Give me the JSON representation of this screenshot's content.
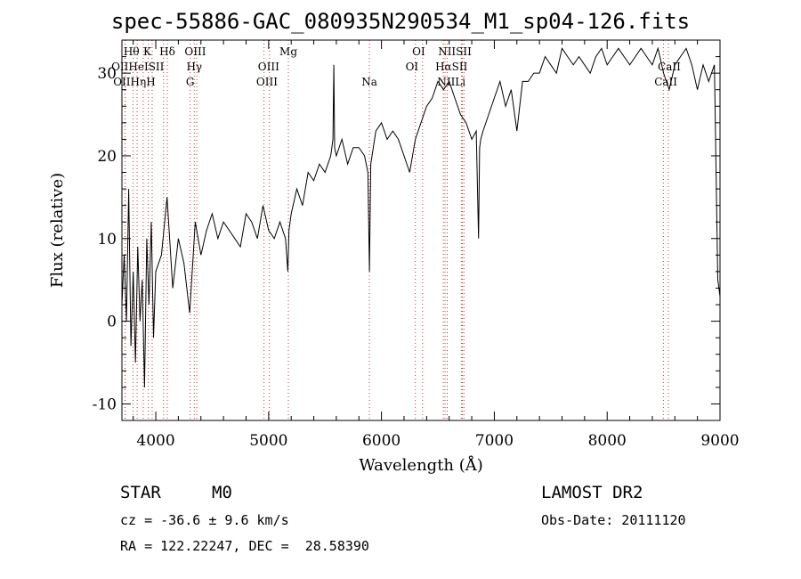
{
  "chart_data": {
    "type": "line",
    "title": "spec-55886-GAC_080935N290534_M1_sp04-126.fits",
    "xlabel": "Wavelength (Å)",
    "ylabel": "Flux (relative)",
    "xlim": [
      3700,
      9000
    ],
    "ylim": [
      -12,
      34
    ],
    "x_ticks": [
      4000,
      5000,
      6000,
      7000,
      8000,
      9000
    ],
    "y_ticks": [
      -10,
      0,
      10,
      20,
      30
    ],
    "grid": false,
    "line_color": "#000000",
    "marker_color": "#cc3333",
    "series": [
      {
        "x": [
          3700,
          3720,
          3740,
          3760,
          3780,
          3800,
          3820,
          3840,
          3860,
          3880,
          3900,
          3920,
          3940,
          3960,
          3980,
          4000,
          4050,
          4100,
          4150,
          4200,
          4250,
          4300,
          4350,
          4400,
          4450,
          4500,
          4550,
          4600,
          4650,
          4700,
          4750,
          4800,
          4850,
          4900,
          4950,
          5000,
          5050,
          5100,
          5150,
          5170,
          5180,
          5200,
          5250,
          5300,
          5350,
          5400,
          5450,
          5500,
          5550,
          5570,
          5578,
          5585,
          5600,
          5650,
          5700,
          5750,
          5800,
          5850,
          5880,
          5893,
          5905,
          5950,
          6000,
          6050,
          6100,
          6150,
          6200,
          6250,
          6300,
          6350,
          6400,
          6450,
          6500,
          6550,
          6600,
          6650,
          6700,
          6750,
          6800,
          6840,
          6860,
          6870,
          6880,
          6900,
          6950,
          7000,
          7050,
          7100,
          7150,
          7200,
          7250,
          7300,
          7350,
          7400,
          7450,
          7500,
          7550,
          7600,
          7650,
          7700,
          7750,
          7800,
          7850,
          7900,
          7950,
          8000,
          8050,
          8100,
          8150,
          8200,
          8250,
          8300,
          8350,
          8400,
          8450,
          8500,
          8550,
          8600,
          8650,
          8700,
          8750,
          8800,
          8850,
          8900,
          8950,
          8980,
          9000
        ],
        "y": [
          2,
          8,
          0,
          16,
          -3,
          6,
          -5,
          9,
          0,
          5,
          -8,
          10,
          2,
          12,
          -2,
          6,
          8,
          15,
          4,
          10,
          7,
          1,
          12,
          8,
          11,
          13,
          10,
          12,
          11,
          10,
          9,
          13,
          12,
          10,
          14,
          11,
          10,
          12,
          10,
          6,
          11,
          13,
          16,
          14,
          18,
          17,
          19,
          18,
          20,
          22,
          31,
          21,
          20,
          22,
          19,
          21,
          21,
          20,
          18,
          6,
          19,
          23,
          24,
          22,
          23,
          22,
          20,
          18,
          22,
          24,
          26,
          27,
          29,
          28,
          29,
          27,
          25,
          24,
          22,
          23,
          10,
          21,
          22,
          23,
          25,
          27,
          29,
          26,
          28,
          23,
          29,
          29,
          30,
          30,
          32,
          31,
          30,
          33,
          32,
          31,
          32,
          31,
          30,
          32,
          33,
          31,
          32,
          33,
          32,
          31,
          32,
          33,
          32,
          31,
          33,
          30,
          28,
          31,
          32,
          33,
          31,
          28,
          31,
          29,
          31,
          5,
          3
        ]
      }
    ],
    "lines": [
      {
        "name": "Hθ",
        "x": 3798
      },
      {
        "name": "OII",
        "x": 3727
      },
      {
        "name": "OII",
        "x": 3729
      },
      {
        "name": "Hη",
        "x": 3835
      },
      {
        "name": "K",
        "x": 3934
      },
      {
        "name": "H",
        "x": 3968
      },
      {
        "name": "HeI",
        "x": 3889
      },
      {
        "name": "SII",
        "x": 4069
      },
      {
        "name": "Hδ",
        "x": 4102
      },
      {
        "name": "OIII",
        "x": 4363
      },
      {
        "name": "Hγ",
        "x": 4341
      },
      {
        "name": "G",
        "x": 4305
      },
      {
        "name": "OIII",
        "x": 4959
      },
      {
        "name": "OIII",
        "x": 5007
      },
      {
        "name": "Mg",
        "x": 5175
      },
      {
        "name": "Na",
        "x": 5893
      },
      {
        "name": "OI",
        "x": 6300
      },
      {
        "name": "OI",
        "x": 6364
      },
      {
        "name": "NII",
        "x": 6548
      },
      {
        "name": "Hα",
        "x": 6563
      },
      {
        "name": "NII",
        "x": 6583
      },
      {
        "name": "SII",
        "x": 6717
      },
      {
        "name": "SII",
        "x": 6731
      },
      {
        "name": "Li",
        "x": 6708
      },
      {
        "name": "CaII",
        "x": 8498
      },
      {
        "name": "CaII",
        "x": 8542
      }
    ],
    "line_labels": [
      {
        "text": "Hθ",
        "x": 3785,
        "row": 0
      },
      {
        "text": "K",
        "x": 3925,
        "row": 0
      },
      {
        "text": "Hδ",
        "x": 4102,
        "row": 0
      },
      {
        "text": "OIII",
        "x": 4350,
        "row": 0
      },
      {
        "text": "Mg",
        "x": 5175,
        "row": 0
      },
      {
        "text": "OI",
        "x": 6330,
        "row": 0
      },
      {
        "text": "NIISII",
        "x": 6650,
        "row": 0
      },
      {
        "text": "OIIHeISII",
        "x": 3840,
        "row": 1
      },
      {
        "text": "Hγ",
        "x": 4341,
        "row": 1
      },
      {
        "text": "OIII",
        "x": 5000,
        "row": 1
      },
      {
        "text": "OI",
        "x": 6270,
        "row": 1
      },
      {
        "text": "HαSII",
        "x": 6620,
        "row": 1
      },
      {
        "text": "CaII",
        "x": 8550,
        "row": 1
      },
      {
        "text": "OIIHηH",
        "x": 3810,
        "row": 2
      },
      {
        "text": "G",
        "x": 4305,
        "row": 2
      },
      {
        "text": "OIII",
        "x": 4985,
        "row": 2
      },
      {
        "text": "Na",
        "x": 5893,
        "row": 2
      },
      {
        "text": "NIILi",
        "x": 6620,
        "row": 2
      },
      {
        "text": "CaII",
        "x": 8520,
        "row": 2
      }
    ]
  },
  "info": {
    "class_label": "STAR",
    "subclass_label": "M0",
    "survey": "LAMOST DR2",
    "cz": "cz = -36.6 ± 9.6 km/s",
    "obs_date": "Obs-Date: 20111120",
    "coords": "RA = 122.22247, DEC =  28.58390"
  }
}
